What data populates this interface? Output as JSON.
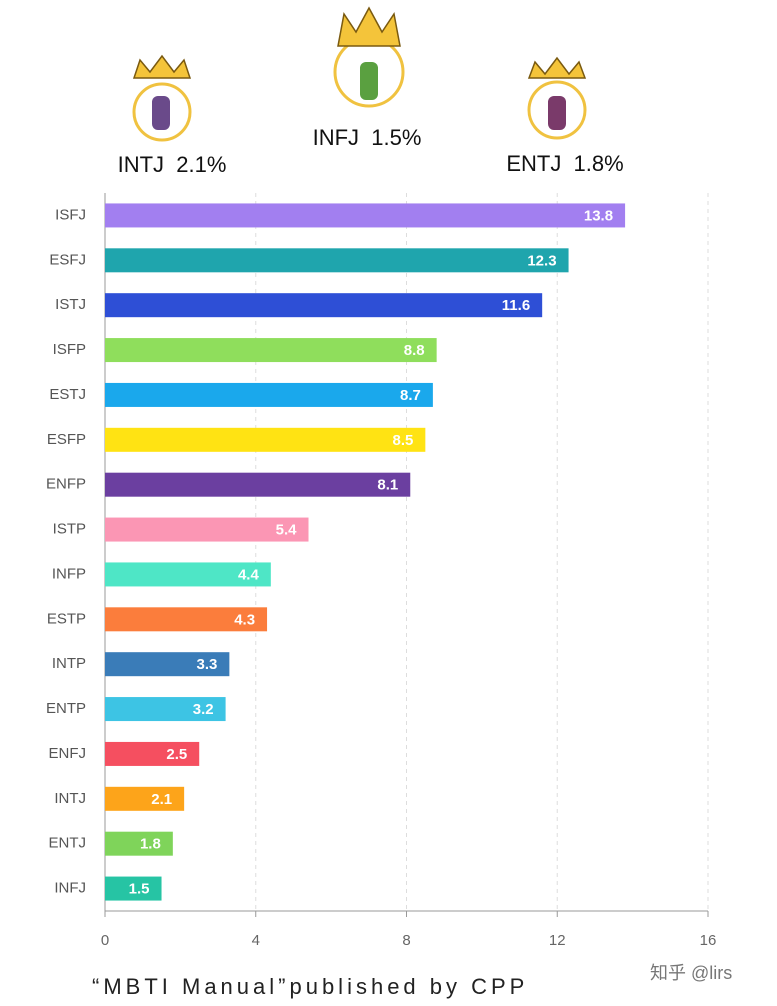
{
  "chart_data": {
    "type": "bar",
    "orientation": "horizontal",
    "categories": [
      "ISFJ",
      "ESFJ",
      "ISTJ",
      "ISFP",
      "ESTJ",
      "ESFP",
      "ENFP",
      "ISTP",
      "INFP",
      "ESTP",
      "INTP",
      "ENTP",
      "ENFJ",
      "INTJ",
      "ENTJ",
      "INFJ"
    ],
    "values": [
      13.8,
      12.3,
      11.6,
      8.8,
      8.7,
      8.5,
      8.1,
      5.4,
      4.4,
      4.3,
      3.3,
      3.2,
      2.5,
      2.1,
      1.8,
      1.5
    ],
    "colors": [
      "#a27ff0",
      "#1fa5ad",
      "#2e4fd6",
      "#8fde5c",
      "#1aa8ec",
      "#ffe313",
      "#6b3fa0",
      "#fb96b4",
      "#4ee6c6",
      "#fb7d3c",
      "#3a7cb8",
      "#3dc4e4",
      "#f54f60",
      "#fda41a",
      "#7fd45a",
      "#26c4a4"
    ],
    "xlim": [
      0,
      16
    ],
    "xticks": [
      0,
      4,
      8,
      12,
      16
    ],
    "grid": true,
    "annotations": [
      "INTJ  2.1%",
      "INFJ  1.5%",
      "ENTJ  1.8%"
    ],
    "source": "“MBTI Manual”published by CPP",
    "watermark": "知乎 @lirs"
  }
}
